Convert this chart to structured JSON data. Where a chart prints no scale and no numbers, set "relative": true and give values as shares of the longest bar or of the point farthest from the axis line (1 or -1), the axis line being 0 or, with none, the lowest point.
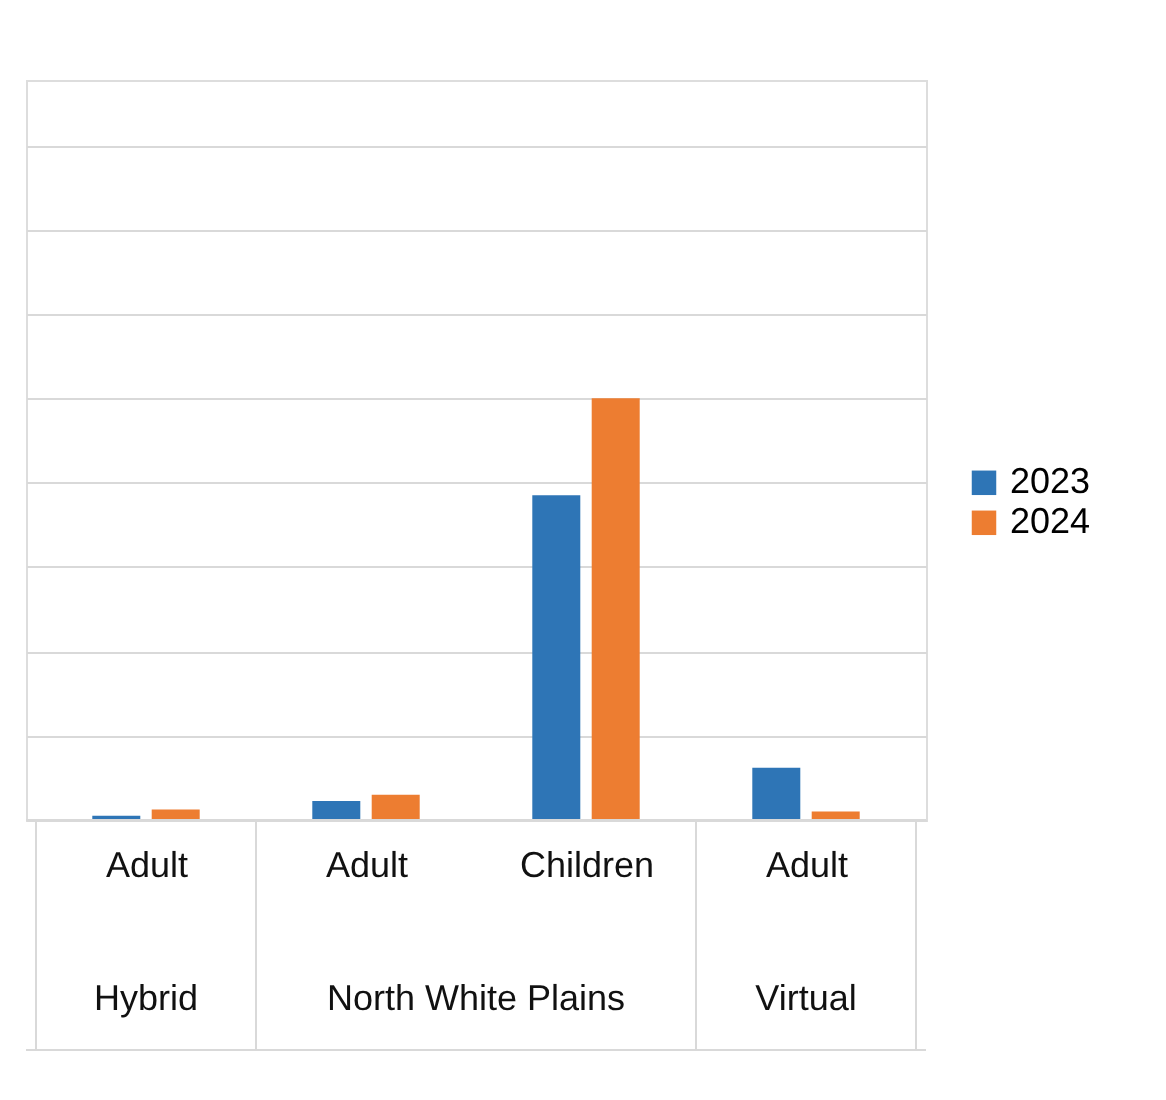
{
  "chart_data": {
    "type": "bar",
    "relative": true,
    "grid": "y",
    "legend": "right",
    "categories": [
      "Adult",
      "Adult",
      "Children",
      "Adult"
    ],
    "series": [
      {
        "name": "2023",
        "color": "#2e75b6",
        "values": [
          0.01,
          0.045,
          0.77,
          0.124
        ]
      },
      {
        "name": "2024",
        "color": "#ed7d31",
        "values": [
          0.025,
          0.06,
          1,
          0.02
        ]
      }
    ],
    "annotations": [
      "Hybrid",
      "North White Plains",
      "Virtual"
    ]
  }
}
